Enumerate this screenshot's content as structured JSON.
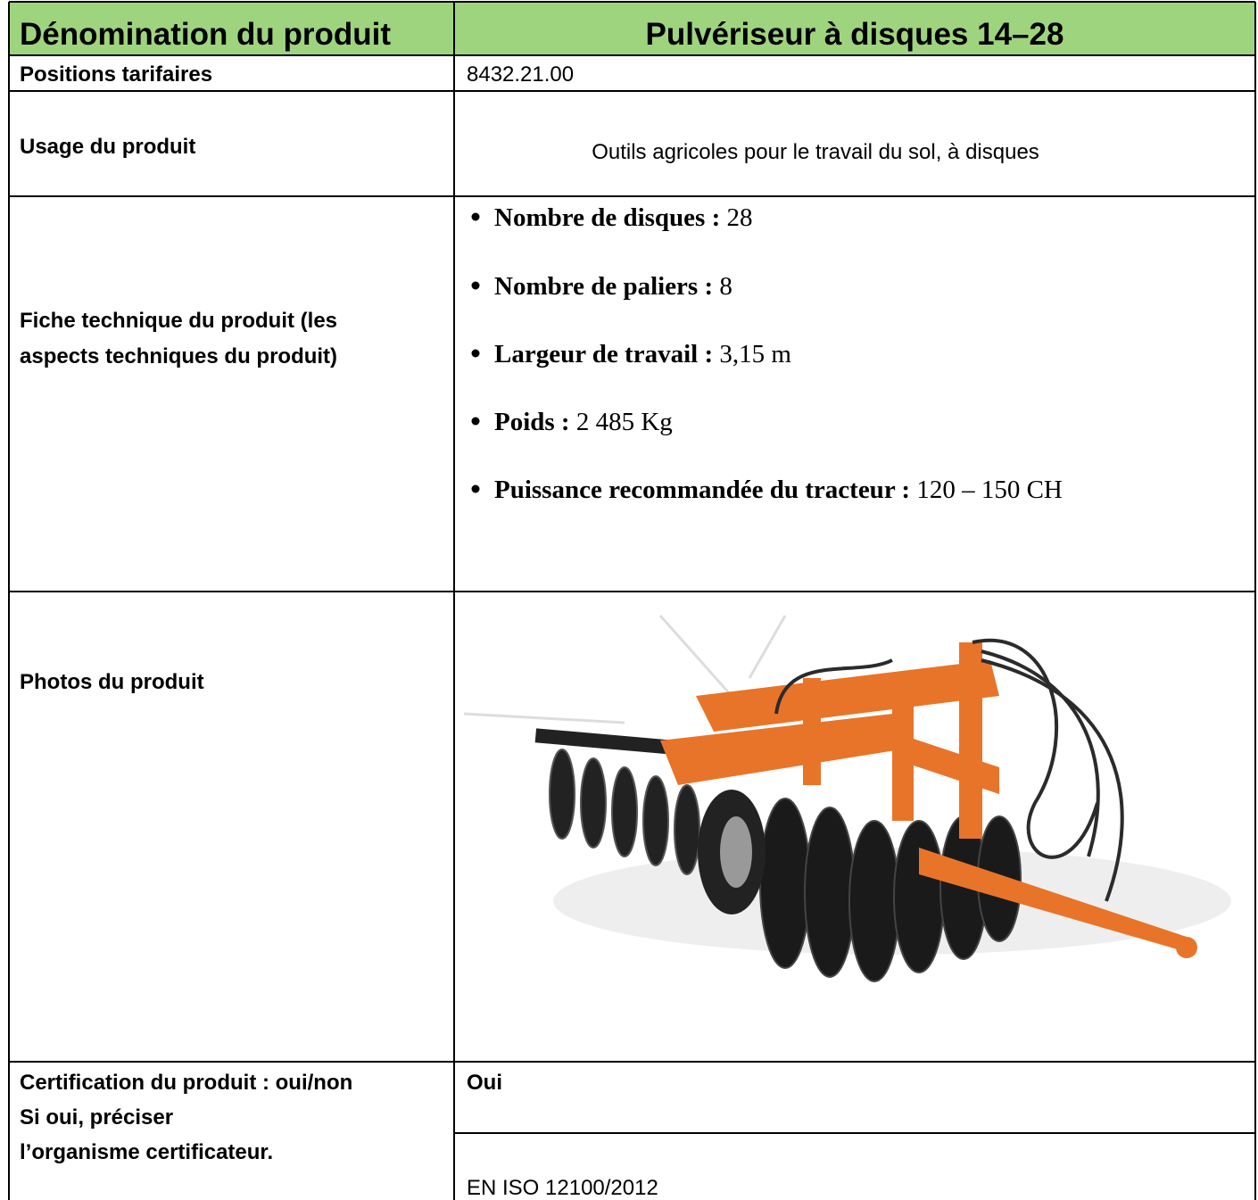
{
  "table": {
    "header": [
      "Dénomination du produit",
      "Pulvériseur à disques 14–28"
    ],
    "positions": {
      "label": "Positions tarifaires",
      "value": "8432.21.00"
    },
    "usage": {
      "label": "Usage du produit",
      "value": "Outils agricoles pour le travail du sol, à disques"
    },
    "fiche": {
      "label": [
        "Fiche technique du produit (les",
        "aspects techniques du produit)"
      ],
      "items": [
        {
          "label": "Nombre de disques :",
          "value": "28"
        },
        {
          "label": "Nombre de paliers :",
          "value": "8"
        },
        {
          "label": "Largeur de travail :",
          "value": "3,15 m"
        },
        {
          "label": "Poids :",
          "value": "2 485 Kg"
        },
        {
          "label": "Puissance recommandée du tracteur :",
          "value": "120 – 150 CH"
        }
      ]
    },
    "photos": {
      "label": "Photos du produit"
    },
    "certification": {
      "label": [
        "Certification du produit : oui/non",
        "Si oui, préciser",
        "l’organisme certificateur."
      ],
      "values": [
        "Oui",
        "EN ISO 12100/2012"
      ]
    }
  }
}
